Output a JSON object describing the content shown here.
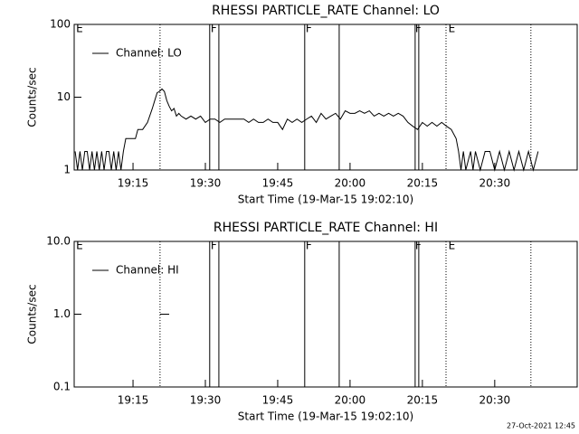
{
  "footer": "27-Oct-2021 12:45",
  "chart_data": [
    {
      "type": "line",
      "title": "RHESSI PARTICLE_RATE Channel: LO",
      "xlabel": "Start Time (19-Mar-15 19:02:10)",
      "ylabel": "Counts/sec",
      "log_y": true,
      "ylim": [
        1,
        100
      ],
      "yticks": [
        1,
        10,
        100
      ],
      "xlim": [
        2.8,
        107.1
      ],
      "xticks": [
        {
          "value": 15,
          "label": "19:15"
        },
        {
          "value": 30,
          "label": "19:30"
        },
        {
          "value": 45,
          "label": "19:45"
        },
        {
          "value": 60,
          "label": "20:00"
        },
        {
          "value": 75,
          "label": "20:15"
        },
        {
          "value": 90,
          "label": "20:30"
        }
      ],
      "legend": "top-left",
      "series": [
        {
          "name": "Channel: LO",
          "color": "#000000",
          "x": [
            3,
            3.5,
            4,
            4.5,
            5,
            5.5,
            6,
            6.5,
            7,
            7.5,
            8,
            8.5,
            9,
            9.5,
            10,
            10.5,
            11,
            11.5,
            12,
            12.5,
            13,
            13.5,
            14.5,
            15.5,
            16,
            17,
            18,
            19,
            19.5,
            20,
            20.5,
            21,
            21.5,
            22,
            22.5,
            23,
            23.5,
            24,
            24.5,
            25,
            26,
            27,
            28,
            29,
            30,
            31,
            32,
            33,
            34,
            35,
            36,
            37,
            38,
            39,
            40,
            41,
            42,
            43,
            44,
            45,
            46,
            47,
            48,
            49,
            50,
            51,
            52,
            53,
            54,
            55,
            56,
            57,
            58,
            59,
            60,
            61,
            62,
            63,
            64,
            65,
            66,
            67,
            68,
            69,
            70,
            71,
            72,
            73,
            74,
            75,
            76,
            77,
            78,
            79,
            80,
            81,
            82,
            82.5,
            83,
            83.5,
            84,
            85,
            85.5,
            86,
            87,
            88,
            89,
            90,
            91,
            92,
            93,
            94,
            95,
            96,
            97,
            98,
            99
          ],
          "values": [
            1.8,
            1,
            1.8,
            1,
            1.8,
            1.8,
            1,
            1.8,
            1,
            1.8,
            1,
            1.8,
            1,
            1.8,
            1.8,
            1,
            1.8,
            1,
            1.8,
            1,
            1.8,
            2.7,
            2.7,
            2.7,
            3.6,
            3.6,
            4.5,
            7,
            9,
            11.5,
            12,
            13,
            12,
            9,
            7.5,
            6.5,
            7,
            5.5,
            6,
            5.5,
            5,
            5.5,
            5,
            5.5,
            4.5,
            5,
            5,
            4.5,
            5,
            5,
            5,
            5,
            5,
            4.5,
            5,
            4.5,
            4.5,
            5,
            4.5,
            4.5,
            3.6,
            5,
            4.5,
            5,
            4.5,
            5,
            5.5,
            4.5,
            6,
            5,
            5.5,
            6,
            5,
            6.5,
            6,
            6,
            6.5,
            6,
            6.5,
            5.5,
            6,
            5.5,
            6,
            5.5,
            6,
            5.5,
            4.5,
            4,
            3.6,
            4.5,
            4,
            4.5,
            4,
            4.5,
            4,
            3.6,
            2.7,
            1.8,
            1,
            1.8,
            1,
            1.8,
            1,
            1.8,
            1,
            1.8,
            1.8,
            1,
            1.8,
            1,
            1.8,
            1,
            1.8,
            1,
            1.8,
            1,
            1.8
          ]
        }
      ],
      "vlines": [
        {
          "x": 20.6,
          "style": "dotted"
        },
        {
          "x": 30.9,
          "style": "solid"
        },
        {
          "x": 32.8,
          "style": "solid"
        },
        {
          "x": 50.6,
          "style": "solid"
        },
        {
          "x": 57.75,
          "style": "solid"
        },
        {
          "x": 73.5,
          "style": "solid"
        },
        {
          "x": 74.25,
          "style": "solid"
        },
        {
          "x": 79.9,
          "style": "dotted"
        },
        {
          "x": 97.5,
          "style": "dotted"
        }
      ],
      "flags": [
        {
          "x": 3.2,
          "label": "E"
        },
        {
          "x": 31.1,
          "label": "F"
        },
        {
          "x": 50.8,
          "label": "F"
        },
        {
          "x": 73.5,
          "label": "F"
        },
        {
          "x": 80.4,
          "label": "E"
        }
      ]
    },
    {
      "type": "line",
      "title": "RHESSI PARTICLE_RATE Channel: HI",
      "xlabel": "Start Time (19-Mar-15 19:02:10)",
      "ylabel": "Counts/sec",
      "log_y": true,
      "ylim": [
        0.1,
        10
      ],
      "yticks": [
        0.1,
        {
          "value": 1,
          "label": "1.0"
        },
        {
          "value": 10,
          "label": "10.0"
        }
      ],
      "xlim": [
        2.8,
        107.1
      ],
      "xticks": [
        {
          "value": 15,
          "label": "19:15"
        },
        {
          "value": 30,
          "label": "19:30"
        },
        {
          "value": 45,
          "label": "19:45"
        },
        {
          "value": 60,
          "label": "20:00"
        },
        {
          "value": 75,
          "label": "20:15"
        },
        {
          "value": 90,
          "label": "20:30"
        }
      ],
      "legend": "top-left",
      "series": [
        {
          "name": "Channel: HI",
          "color": "#000000",
          "x": [
            20.6,
            22.5
          ],
          "values": [
            1,
            1
          ]
        }
      ],
      "vlines": [
        {
          "x": 20.6,
          "style": "dotted"
        },
        {
          "x": 30.9,
          "style": "solid"
        },
        {
          "x": 32.8,
          "style": "solid"
        },
        {
          "x": 50.6,
          "style": "solid"
        },
        {
          "x": 57.75,
          "style": "solid"
        },
        {
          "x": 73.5,
          "style": "solid"
        },
        {
          "x": 74.25,
          "style": "solid"
        },
        {
          "x": 79.9,
          "style": "dotted"
        },
        {
          "x": 97.5,
          "style": "dotted"
        }
      ],
      "flags": [
        {
          "x": 3.2,
          "label": "E"
        },
        {
          "x": 31.1,
          "label": "F"
        },
        {
          "x": 50.8,
          "label": "F"
        },
        {
          "x": 73.5,
          "label": "F"
        },
        {
          "x": 80.4,
          "label": "E"
        }
      ]
    }
  ]
}
